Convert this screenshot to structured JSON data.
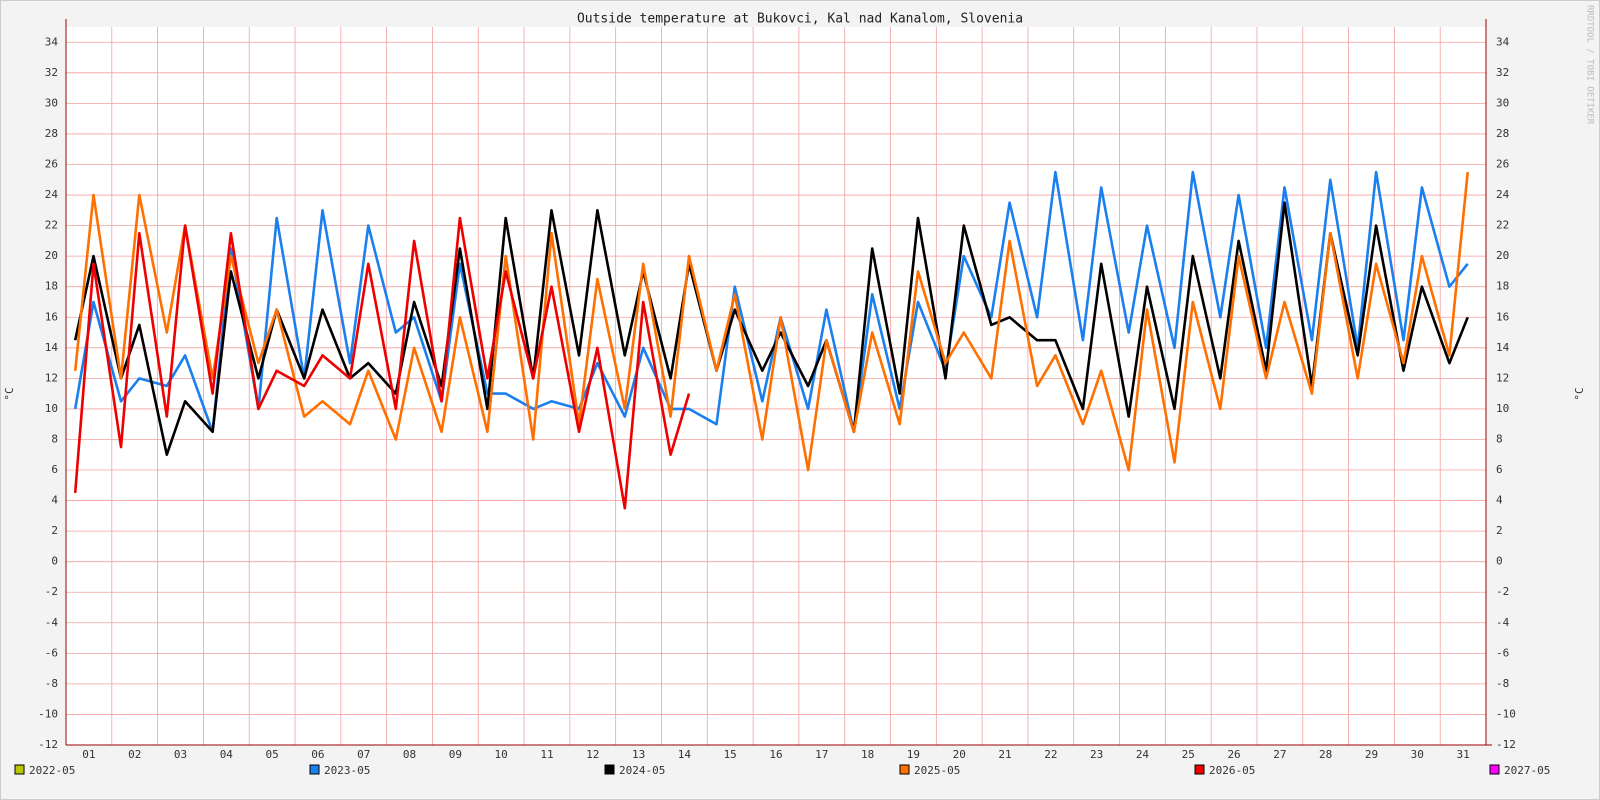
{
  "chart_data": {
    "type": "line",
    "title": "Outside temperature at Bukovci, Kal nad Kanalom, Slovenia",
    "y_label": "°C",
    "credit": "RRDTOOL / TOBI OETIKER",
    "xlim": [
      0,
      31
    ],
    "ylim": [
      -12,
      35
    ],
    "yticks": [
      -12,
      -10,
      -8,
      -6,
      -4,
      -2,
      0,
      2,
      4,
      6,
      8,
      10,
      12,
      14,
      16,
      18,
      20,
      22,
      24,
      26,
      28,
      30,
      32,
      34
    ],
    "xgrid": [
      0,
      1,
      2,
      3,
      4,
      5,
      6,
      7,
      8,
      9,
      10,
      11,
      12,
      13,
      14,
      15,
      16,
      17,
      18,
      19,
      20,
      21,
      22,
      23,
      24,
      25,
      26,
      27,
      28,
      29,
      30,
      31
    ],
    "xticks": [
      {
        "value": 0.5,
        "label": "01"
      },
      {
        "value": 1.5,
        "label": "02"
      },
      {
        "value": 2.5,
        "label": "03"
      },
      {
        "value": 3.5,
        "label": "04"
      },
      {
        "value": 4.5,
        "label": "05"
      },
      {
        "value": 5.5,
        "label": "06"
      },
      {
        "value": 6.5,
        "label": "07"
      },
      {
        "value": 7.5,
        "label": "08"
      },
      {
        "value": 8.5,
        "label": "09"
      },
      {
        "value": 9.5,
        "label": "10"
      },
      {
        "value": 10.5,
        "label": "11"
      },
      {
        "value": 11.5,
        "label": "12"
      },
      {
        "value": 12.5,
        "label": "13"
      },
      {
        "value": 13.5,
        "label": "14"
      },
      {
        "value": 14.5,
        "label": "15"
      },
      {
        "value": 15.5,
        "label": "16"
      },
      {
        "value": 16.5,
        "label": "17"
      },
      {
        "value": 17.5,
        "label": "18"
      },
      {
        "value": 18.5,
        "label": "19"
      },
      {
        "value": 19.5,
        "label": "20"
      },
      {
        "value": 20.5,
        "label": "21"
      },
      {
        "value": 21.5,
        "label": "22"
      },
      {
        "value": 22.5,
        "label": "23"
      },
      {
        "value": 23.5,
        "label": "24"
      },
      {
        "value": 24.5,
        "label": "25"
      },
      {
        "value": 25.5,
        "label": "26"
      },
      {
        "value": 26.5,
        "label": "27"
      },
      {
        "value": 27.5,
        "label": "28"
      },
      {
        "value": 28.5,
        "label": "29"
      },
      {
        "value": 29.5,
        "label": "30"
      },
      {
        "value": 30.5,
        "label": "31"
      }
    ],
    "grid": true,
    "x": [
      0.2,
      0.6,
      1.2,
      1.6,
      2.2,
      2.6,
      3.2,
      3.6,
      4.2,
      4.6,
      5.2,
      5.6,
      6.2,
      6.6,
      7.2,
      7.6,
      8.2,
      8.6,
      9.2,
      9.6,
      10.2,
      10.6,
      11.2,
      11.6,
      12.2,
      12.6,
      13.2,
      13.6,
      14.2,
      14.6,
      15.2,
      15.6,
      16.2,
      16.6,
      17.2,
      17.6,
      18.2,
      18.6,
      19.2,
      19.6,
      20.2,
      20.6,
      21.2,
      21.6,
      22.2,
      22.6,
      23.2,
      23.6,
      24.2,
      24.6,
      25.2,
      25.6,
      26.2,
      26.6,
      27.2,
      27.6,
      28.2,
      28.6,
      29.2,
      29.6,
      30.2,
      30.6
    ],
    "series": [
      {
        "name": "2022-05",
        "color": "#b8c800",
        "values": [
          null,
          null,
          null,
          null,
          null,
          null,
          null,
          null,
          null,
          null,
          null,
          null,
          null,
          null,
          null,
          null,
          null,
          null,
          null,
          null,
          null,
          null,
          null,
          null,
          null,
          null,
          null,
          null,
          null,
          null,
          null,
          null,
          null,
          null,
          null,
          null,
          null,
          null,
          null,
          null,
          null,
          null,
          null,
          null,
          null,
          null,
          null,
          null,
          null,
          null,
          null,
          null,
          null,
          null,
          null,
          null,
          null,
          null,
          null,
          null,
          null,
          null
        ]
      },
      {
        "name": "2023-05",
        "color": "#1a7fef",
        "values": [
          10,
          17,
          10.5,
          12,
          11.5,
          13.5,
          8.5,
          20.5,
          10,
          22.5,
          12,
          23,
          13,
          22,
          15,
          16,
          10.5,
          19.5,
          11,
          11,
          10,
          10.5,
          10,
          13,
          9.5,
          14,
          10,
          10,
          9,
          18,
          10.5,
          16,
          10,
          16.5,
          8.5,
          17.5,
          10,
          17,
          12.5,
          20,
          16,
          23.5,
          16,
          25.5,
          14.5,
          24.5,
          15,
          22,
          14,
          25.5,
          16,
          24,
          14,
          24.5,
          14.5,
          25,
          14,
          25.5,
          14.5,
          24.5,
          18,
          19.5
        ]
      },
      {
        "name": "2024-05",
        "color": "#000000",
        "values": [
          14.5,
          20,
          12,
          15.5,
          7,
          10.5,
          8.5,
          19,
          12,
          16.5,
          12,
          16.5,
          12,
          13,
          11,
          17,
          11.5,
          20.5,
          10,
          22.5,
          12,
          23,
          13.5,
          23,
          13.5,
          19,
          12,
          19.5,
          12.5,
          16.5,
          12.5,
          15,
          11.5,
          14.5,
          8.5,
          20.5,
          11,
          22.5,
          12,
          22,
          15.5,
          16,
          14.5,
          14.5,
          10,
          19.5,
          9.5,
          18,
          10,
          20,
          12,
          21,
          12.5,
          23.5,
          11.5,
          21.5,
          13.5,
          22,
          12.5,
          18,
          13,
          16
        ]
      },
      {
        "name": "2025-05",
        "color": "#ff7000",
        "values": [
          12.5,
          24,
          12,
          24,
          15,
          22,
          12,
          20,
          13,
          16.5,
          9.5,
          10.5,
          9,
          12.5,
          8,
          14,
          8.5,
          16,
          8.5,
          20,
          8,
          21.5,
          9,
          18.5,
          10,
          19.5,
          9.5,
          20,
          12.5,
          17.5,
          8,
          16,
          6,
          14.5,
          8.5,
          15,
          9,
          19,
          13,
          15,
          12,
          21,
          11.5,
          13.5,
          9,
          12.5,
          6,
          16.5,
          6.5,
          17,
          10,
          20,
          12,
          17,
          11,
          21.5,
          12,
          19.5,
          13,
          20,
          13.5,
          25.5
        ]
      },
      {
        "name": "2026-05",
        "color": "#ee0000",
        "values": [
          4.5,
          19.5,
          7.5,
          21.5,
          9.5,
          22,
          11,
          21.5,
          10,
          12.5,
          11.5,
          13.5,
          12,
          19.5,
          10,
          21,
          10.5,
          22.5,
          12,
          19,
          12,
          18,
          8.5,
          14,
          3.5,
          17,
          7,
          11,
          null,
          null,
          null,
          null,
          null,
          null,
          null,
          null,
          null,
          null,
          null,
          null,
          null,
          null,
          null,
          null,
          null,
          null,
          null,
          null,
          null,
          null,
          null,
          null,
          null,
          null,
          null,
          null,
          null,
          null,
          null,
          null,
          null,
          null
        ]
      },
      {
        "name": "2027-05",
        "color": "#ff00ff",
        "values": [
          null,
          null,
          null,
          null,
          null,
          null,
          null,
          null,
          null,
          null,
          null,
          null,
          null,
          null,
          null,
          null,
          null,
          null,
          null,
          null,
          null,
          null,
          null,
          null,
          null,
          null,
          null,
          null,
          null,
          null,
          null,
          null,
          null,
          null,
          null,
          null,
          null,
          null,
          null,
          null,
          null,
          null,
          null,
          null,
          null,
          null,
          null,
          null,
          null,
          null,
          null,
          null,
          null,
          null,
          null,
          null,
          null,
          null,
          null,
          null,
          null,
          null
        ]
      }
    ]
  }
}
